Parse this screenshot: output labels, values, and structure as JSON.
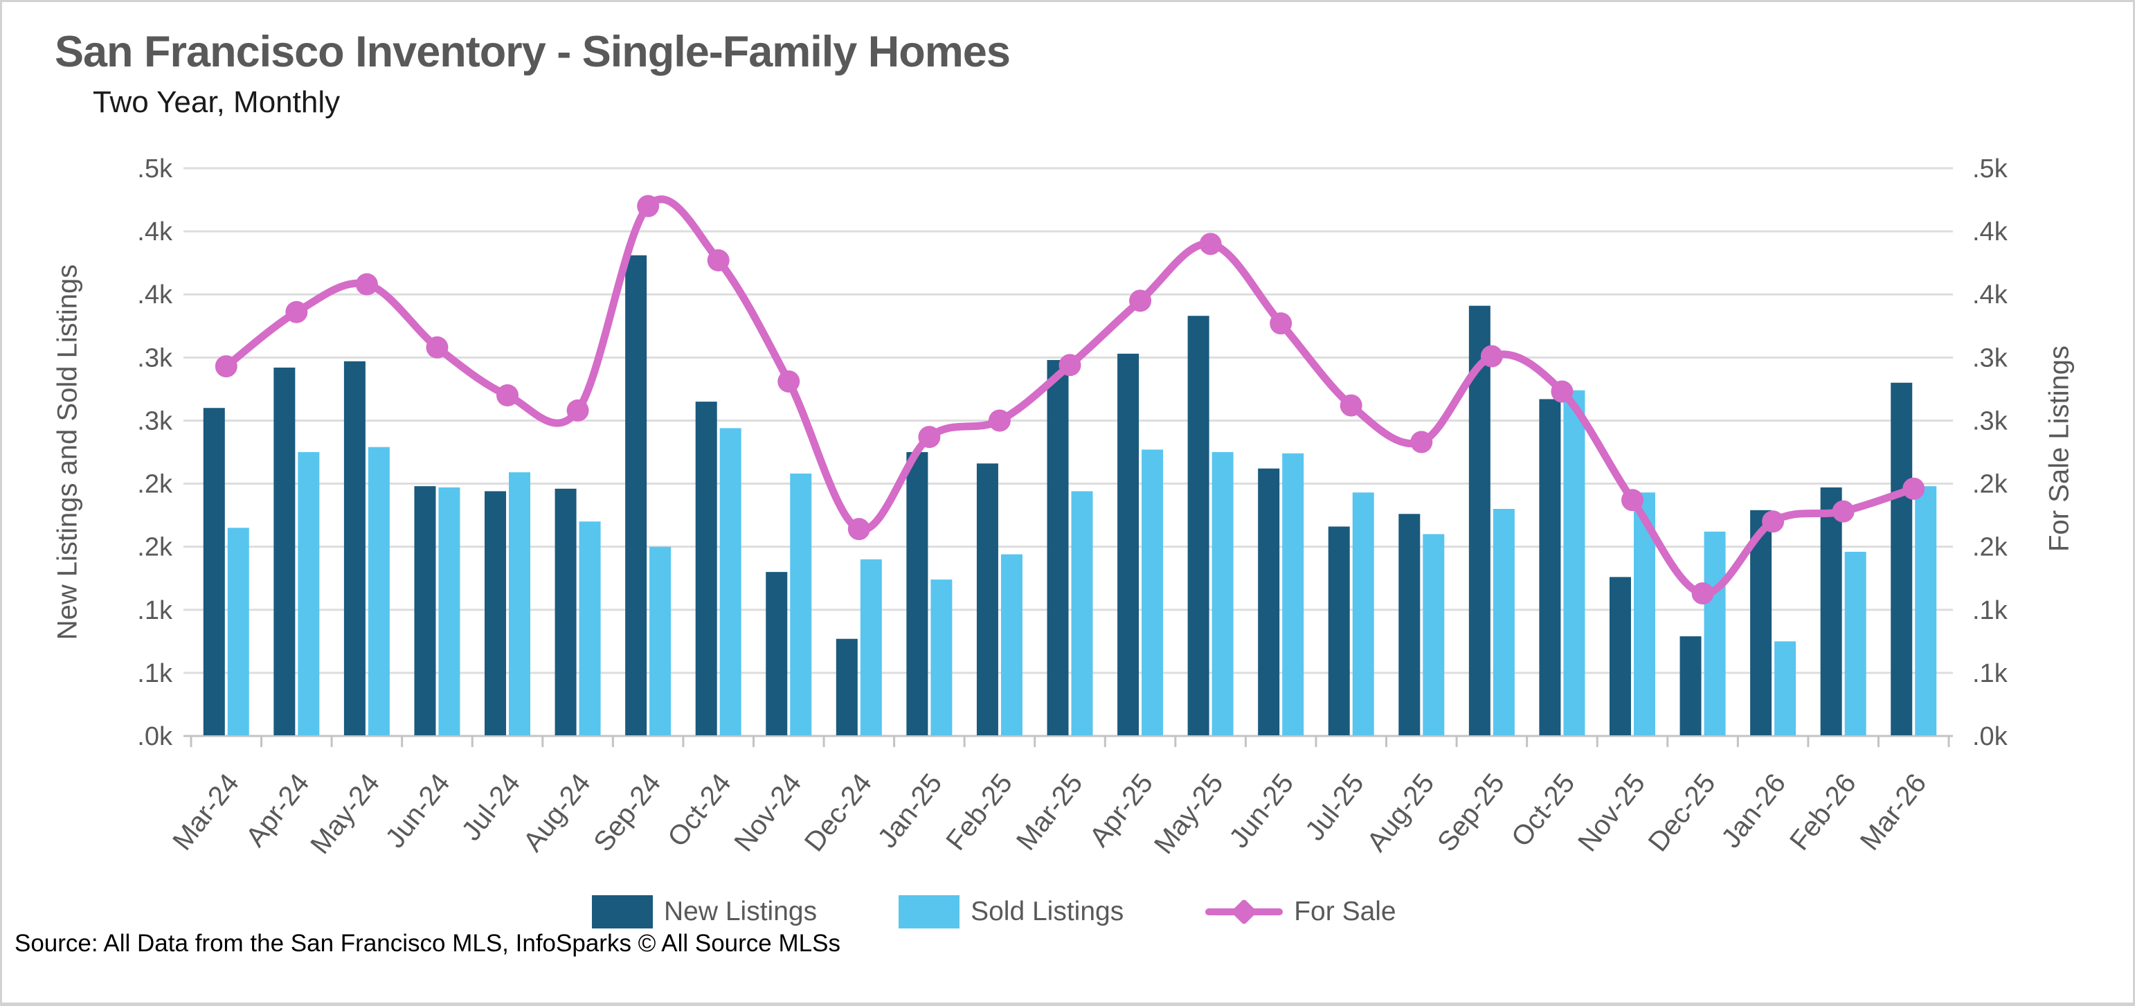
{
  "header": {
    "title": "San Francisco Inventory - Single-Family Homes",
    "subtitle": "Two Year, Monthly"
  },
  "source": "Source: All Data from the San Francisco MLS, InfoSparks © All Source MLSs",
  "colors": {
    "new_listings": "#1a5a7d",
    "sold_listings": "#58c5ee",
    "for_sale": "#d46cc8",
    "gridline": "#dddddd",
    "axis_line": "#c3c3c3",
    "text_gray": "#595959",
    "title_gray": "#595959",
    "page_border": "#d2d2d2"
  },
  "legend": [
    {
      "label": "New Listings",
      "color": "#1a5a7d",
      "type": "bar"
    },
    {
      "label": "Sold Listings",
      "color": "#58c5ee",
      "type": "bar"
    },
    {
      "label": "For Sale",
      "color": "#d46cc8",
      "type": "line"
    }
  ],
  "axes": {
    "left_title": "New Listings and Sold Listings",
    "right_title": "For Sale Listings",
    "y_max": 450,
    "tick_values": [
      0,
      50,
      100,
      150,
      200,
      250,
      300,
      350,
      400,
      450
    ],
    "tick_labels": [
      ".0k",
      ".1k",
      ".1k",
      ".2k",
      ".2k",
      ".3k",
      ".3k",
      ".4k",
      ".4k",
      ".5k"
    ]
  },
  "chart_data": {
    "type": "bar",
    "title": "San Francisco Inventory - Single-Family Homes",
    "subtitle": "Two Year, Monthly",
    "xlabel": "",
    "ylabel_left": "New Listings and Sold Listings",
    "ylabel_right": "For Sale Listings",
    "ylim": [
      0,
      450
    ],
    "ytick_step": 50,
    "grid": true,
    "legend_position": "bottom",
    "categories": [
      "Mar-24",
      "Apr-24",
      "May-24",
      "Jun-24",
      "Jul-24",
      "Aug-24",
      "Sep-24",
      "Oct-24",
      "Nov-24",
      "Dec-24",
      "Jan-25",
      "Feb-25",
      "Mar-25",
      "Apr-25",
      "May-25",
      "Jun-25",
      "Jul-25",
      "Aug-25",
      "Sep-25",
      "Oct-25",
      "Nov-25",
      "Dec-25",
      "Jan-26",
      "Feb-26",
      "Mar-26"
    ],
    "series": [
      {
        "name": "New Listings",
        "type": "bar",
        "color": "#1a5a7d",
        "values": [
          260,
          292,
          297,
          198,
          194,
          196,
          381,
          265,
          130,
          77,
          225,
          216,
          298,
          303,
          333,
          212,
          166,
          176,
          341,
          267,
          126,
          79,
          179,
          197,
          280
        ]
      },
      {
        "name": "Sold Listings",
        "type": "bar",
        "color": "#58c5ee",
        "values": [
          165,
          225,
          229,
          197,
          209,
          170,
          150,
          244,
          208,
          140,
          124,
          144,
          194,
          227,
          225,
          224,
          193,
          160,
          180,
          274,
          193,
          162,
          75,
          146,
          198
        ]
      },
      {
        "name": "For Sale",
        "type": "line",
        "color": "#d46cc8",
        "values": [
          293,
          336,
          358,
          308,
          270,
          258,
          420,
          377,
          281,
          164,
          237,
          250,
          294,
          345,
          390,
          327,
          262,
          233,
          301,
          273,
          187,
          113,
          170,
          178,
          196
        ]
      }
    ]
  }
}
